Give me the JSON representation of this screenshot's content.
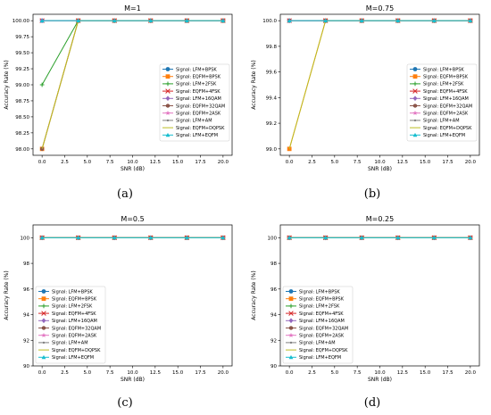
{
  "panel_labels": [
    "(a)",
    "(b)",
    "(c)",
    "(d)"
  ],
  "legend_entries": [
    {
      "name": "Signal: LFM+BPSK",
      "color": "#1f77b4",
      "marker": "circle"
    },
    {
      "name": "Signal: EQFM+BPSK",
      "color": "#ff7f0e",
      "marker": "square"
    },
    {
      "name": "Signal: LFM+2FSK",
      "color": "#2ca02c",
      "marker": "plus"
    },
    {
      "name": "Signal: EQFM+4FSK",
      "color": "#d62728",
      "marker": "x"
    },
    {
      "name": "Signal: LFM+16QAM",
      "color": "#9467bd",
      "marker": "diamond"
    },
    {
      "name": "Signal: EQFM+32QAM",
      "color": "#8c564b",
      "marker": "hexagon"
    },
    {
      "name": "Signal: EQFM+2ASK",
      "color": "#e377c2",
      "marker": "star"
    },
    {
      "name": "Signal: LFM+AM",
      "color": "#7f7f7f",
      "marker": "dot"
    },
    {
      "name": "Signal: EQFM+DQPSK",
      "color": "#bcbd22",
      "marker": "none"
    },
    {
      "name": "Signal: LFM+EQFM",
      "color": "#17becf",
      "marker": "triangle"
    }
  ],
  "chart_data": [
    {
      "type": "line",
      "title": "M=1",
      "xlabel": "SNR (dB)",
      "ylabel": "Accuracy Rate (%)",
      "x": [
        0,
        4,
        8,
        12,
        16,
        20
      ],
      "xlim": [
        -1,
        21
      ],
      "ylim": [
        97.9,
        100.1
      ],
      "xticks": [
        0.0,
        2.5,
        5.0,
        7.5,
        10.0,
        12.5,
        15.0,
        17.5,
        20.0
      ],
      "xtick_labels": [
        "0.0",
        "2.5",
        "5.0",
        "7.5",
        "10.0",
        "12.5",
        "15.0",
        "17.5",
        "20.0"
      ],
      "yticks": [
        98.0,
        98.25,
        98.5,
        98.75,
        99.0,
        99.25,
        99.5,
        99.75,
        100.0
      ],
      "ytick_labels": [
        "98.00",
        "98.25",
        "98.50",
        "98.75",
        "99.00",
        "99.25",
        "99.50",
        "99.75",
        "100.00"
      ],
      "legend": "center-right",
      "grid": false,
      "series": [
        {
          "name": "Signal: LFM+BPSK",
          "values": [
            100,
            100,
            100,
            100,
            100,
            100
          ]
        },
        {
          "name": "Signal: EQFM+BPSK",
          "values": [
            98,
            100,
            100,
            100,
            100,
            100
          ]
        },
        {
          "name": "Signal: LFM+2FSK",
          "values": [
            99,
            100,
            100,
            100,
            100,
            100
          ]
        },
        {
          "name": "Signal: EQFM+4FSK",
          "values": [
            100,
            100,
            100,
            100,
            100,
            100
          ]
        },
        {
          "name": "Signal: LFM+16QAM",
          "values": [
            100,
            100,
            100,
            100,
            100,
            100
          ]
        },
        {
          "name": "Signal: EQFM+32QAM",
          "values": [
            98,
            100,
            100,
            100,
            100,
            100
          ]
        },
        {
          "name": "Signal: EQFM+2ASK",
          "values": [
            100,
            100,
            100,
            100,
            100,
            100
          ]
        },
        {
          "name": "Signal: LFM+AM",
          "values": [
            100,
            100,
            100,
            100,
            100,
            100
          ]
        },
        {
          "name": "Signal: EQFM+DQPSK",
          "values": [
            98,
            100,
            100,
            100,
            100,
            100
          ]
        },
        {
          "name": "Signal: LFM+EQFM",
          "values": [
            100,
            100,
            100,
            100,
            100,
            100
          ]
        }
      ]
    },
    {
      "type": "line",
      "title": "M=0.75",
      "xlabel": "SNR (dB)",
      "ylabel": "Accuracy Rate (%)",
      "x": [
        0,
        4,
        8,
        12,
        16,
        20
      ],
      "xlim": [
        -1,
        21
      ],
      "ylim": [
        98.95,
        100.05
      ],
      "xticks": [
        0.0,
        2.5,
        5.0,
        7.5,
        10.0,
        12.5,
        15.0,
        17.5,
        20.0
      ],
      "xtick_labels": [
        "0.0",
        "2.5",
        "5.0",
        "7.5",
        "10.0",
        "12.5",
        "15.0",
        "17.5",
        "20.0"
      ],
      "yticks": [
        99.0,
        99.2,
        99.4,
        99.6,
        99.8,
        100.0
      ],
      "ytick_labels": [
        "99.0",
        "99.2",
        "99.4",
        "99.6",
        "99.8",
        "100.0"
      ],
      "legend": "center-right",
      "grid": false,
      "series": [
        {
          "name": "Signal: LFM+BPSK",
          "values": [
            100,
            100,
            100,
            100,
            100,
            100
          ]
        },
        {
          "name": "Signal: EQFM+BPSK",
          "values": [
            99,
            100,
            100,
            100,
            100,
            100
          ]
        },
        {
          "name": "Signal: LFM+2FSK",
          "values": [
            100,
            100,
            100,
            100,
            100,
            100
          ]
        },
        {
          "name": "Signal: EQFM+4FSK",
          "values": [
            100,
            100,
            100,
            100,
            100,
            100
          ]
        },
        {
          "name": "Signal: LFM+16QAM",
          "values": [
            100,
            100,
            100,
            100,
            100,
            100
          ]
        },
        {
          "name": "Signal: EQFM+32QAM",
          "values": [
            100,
            100,
            100,
            100,
            100,
            100
          ]
        },
        {
          "name": "Signal: EQFM+2ASK",
          "values": [
            100,
            100,
            100,
            100,
            100,
            100
          ]
        },
        {
          "name": "Signal: LFM+AM",
          "values": [
            100,
            100,
            100,
            100,
            100,
            100
          ]
        },
        {
          "name": "Signal: EQFM+DQPSK",
          "values": [
            99,
            100,
            100,
            100,
            100,
            100
          ]
        },
        {
          "name": "Signal: LFM+EQFM",
          "values": [
            100,
            100,
            100,
            100,
            100,
            100
          ]
        }
      ]
    },
    {
      "type": "line",
      "title": "M=0.5",
      "xlabel": "SNR (dB)",
      "ylabel": "Accuracy Rate (%)",
      "x": [
        0,
        4,
        8,
        12,
        16,
        20
      ],
      "xlim": [
        -1,
        21
      ],
      "ylim": [
        90,
        101
      ],
      "xticks": [
        0.0,
        2.5,
        5.0,
        7.5,
        10.0,
        12.5,
        15.0,
        17.5,
        20.0
      ],
      "xtick_labels": [
        "0.0",
        "2.5",
        "5.0",
        "7.5",
        "10.0",
        "12.5",
        "15.0",
        "17.5",
        "20.0"
      ],
      "yticks": [
        90,
        92,
        94,
        96,
        98,
        100
      ],
      "ytick_labels": [
        "90",
        "92",
        "94",
        "96",
        "98",
        "100"
      ],
      "legend": "lower-left",
      "grid": false,
      "series": [
        {
          "name": "Signal: LFM+BPSK",
          "values": [
            100,
            100,
            100,
            100,
            100,
            100
          ]
        },
        {
          "name": "Signal: EQFM+BPSK",
          "values": [
            100,
            100,
            100,
            100,
            100,
            100
          ]
        },
        {
          "name": "Signal: LFM+2FSK",
          "values": [
            100,
            100,
            100,
            100,
            100,
            100
          ]
        },
        {
          "name": "Signal: EQFM+4FSK",
          "values": [
            100,
            100,
            100,
            100,
            100,
            100
          ]
        },
        {
          "name": "Signal: LFM+16QAM",
          "values": [
            100,
            100,
            100,
            100,
            100,
            100
          ]
        },
        {
          "name": "Signal: EQFM+32QAM",
          "values": [
            100,
            100,
            100,
            100,
            100,
            100
          ]
        },
        {
          "name": "Signal: EQFM+2ASK",
          "values": [
            100,
            100,
            100,
            100,
            100,
            100
          ]
        },
        {
          "name": "Signal: LFM+AM",
          "values": [
            100,
            100,
            100,
            100,
            100,
            100
          ]
        },
        {
          "name": "Signal: EQFM+DQPSK",
          "values": [
            100,
            100,
            100,
            100,
            100,
            100
          ]
        },
        {
          "name": "Signal: LFM+EQFM",
          "values": [
            100,
            100,
            100,
            100,
            100,
            100
          ]
        }
      ]
    },
    {
      "type": "line",
      "title": "M=0.25",
      "xlabel": "SNR (dB)",
      "ylabel": "Accuracy Rate (%)",
      "x": [
        0,
        4,
        8,
        12,
        16,
        20
      ],
      "xlim": [
        -1,
        21
      ],
      "ylim": [
        90,
        101
      ],
      "xticks": [
        0.0,
        2.5,
        5.0,
        7.5,
        10.0,
        12.5,
        15.0,
        17.5,
        20.0
      ],
      "xtick_labels": [
        "0.0",
        "2.5",
        "5.0",
        "7.5",
        "10.0",
        "12.5",
        "15.0",
        "17.5",
        "20.0"
      ],
      "yticks": [
        90,
        92,
        94,
        96,
        98,
        100
      ],
      "ytick_labels": [
        "90",
        "92",
        "94",
        "96",
        "98",
        "100"
      ],
      "legend": "lower-left",
      "grid": false,
      "series": [
        {
          "name": "Signal: LFM+BPSK",
          "values": [
            100,
            100,
            100,
            100,
            100,
            100
          ]
        },
        {
          "name": "Signal: EQFM+BPSK",
          "values": [
            100,
            100,
            100,
            100,
            100,
            100
          ]
        },
        {
          "name": "Signal: LFM+2FSK",
          "values": [
            100,
            100,
            100,
            100,
            100,
            100
          ]
        },
        {
          "name": "Signal: EQFM+4FSK",
          "values": [
            100,
            100,
            100,
            100,
            100,
            100
          ]
        },
        {
          "name": "Signal: LFM+16QAM",
          "values": [
            100,
            100,
            100,
            100,
            100,
            100
          ]
        },
        {
          "name": "Signal: EQFM+32QAM",
          "values": [
            100,
            100,
            100,
            100,
            100,
            100
          ]
        },
        {
          "name": "Signal: EQFM+2ASK",
          "values": [
            100,
            100,
            100,
            100,
            100,
            100
          ]
        },
        {
          "name": "Signal: LFM+AM",
          "values": [
            100,
            100,
            100,
            100,
            100,
            100
          ]
        },
        {
          "name": "Signal: EQFM+DQPSK",
          "values": [
            100,
            100,
            100,
            100,
            100,
            100
          ]
        },
        {
          "name": "Signal: LFM+EQFM",
          "values": [
            100,
            100,
            100,
            100,
            100,
            100
          ]
        }
      ]
    }
  ]
}
